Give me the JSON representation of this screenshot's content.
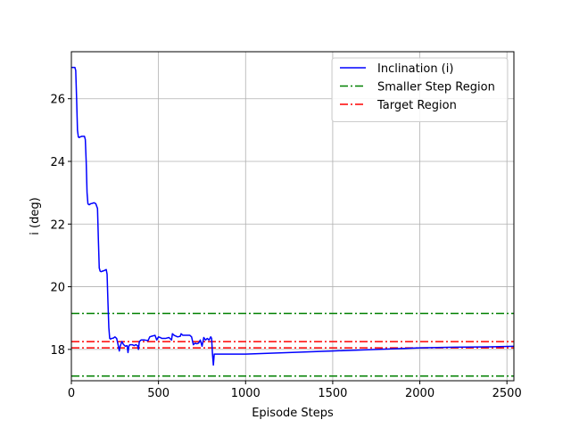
{
  "chart_data": {
    "type": "line",
    "xlabel": "Episode Steps",
    "ylabel": "i (deg)",
    "xlim": [
      0,
      2540
    ],
    "ylim": [
      17.0,
      27.5
    ],
    "xticks": [
      0,
      500,
      1000,
      1500,
      2000,
      2500
    ],
    "yticks": [
      18,
      20,
      22,
      24,
      26
    ],
    "grid": true,
    "legend_position": "top-right",
    "series": [
      {
        "name": "Inclination (i)",
        "color": "#0000ff",
        "style": "solid",
        "x": [
          0,
          5,
          10,
          15,
          20,
          25,
          30,
          35,
          40,
          45,
          50,
          60,
          70,
          75,
          80,
          85,
          90,
          95,
          100,
          105,
          110,
          120,
          130,
          140,
          150,
          155,
          160,
          165,
          170,
          180,
          190,
          200,
          205,
          210,
          215,
          220,
          225,
          230,
          240,
          250,
          260,
          270,
          275,
          280,
          290,
          300,
          310,
          320,
          325,
          330,
          335,
          340,
          350,
          360,
          370,
          380,
          385,
          390,
          400,
          420,
          440,
          450,
          460,
          480,
          490,
          500,
          510,
          520,
          540,
          560,
          575,
          580,
          590,
          610,
          625,
          630,
          640,
          660,
          680,
          690,
          700,
          710,
          720,
          730,
          740,
          750,
          760,
          770,
          780,
          790,
          800,
          805,
          810,
          815,
          820,
          1000,
          1500,
          2000,
          2200,
          2400,
          2540
        ],
        "y": [
          27.0,
          27.0,
          27.0,
          27.0,
          27.0,
          26.9,
          26.0,
          25.0,
          24.78,
          24.76,
          24.78,
          24.8,
          24.8,
          24.8,
          24.7,
          24.0,
          23.0,
          22.65,
          22.62,
          22.62,
          22.65,
          22.66,
          22.68,
          22.65,
          22.5,
          21.5,
          20.6,
          20.5,
          20.48,
          20.5,
          20.52,
          20.55,
          20.4,
          19.5,
          18.7,
          18.35,
          18.33,
          18.35,
          18.36,
          18.4,
          18.35,
          18.1,
          17.95,
          18.1,
          18.25,
          18.15,
          18.1,
          18.12,
          17.9,
          18.1,
          18.15,
          18.15,
          18.15,
          18.12,
          18.15,
          18.12,
          18.0,
          18.25,
          18.3,
          18.3,
          18.28,
          18.4,
          18.42,
          18.45,
          18.3,
          18.4,
          18.38,
          18.35,
          18.35,
          18.38,
          18.3,
          18.5,
          18.45,
          18.4,
          18.42,
          18.5,
          18.45,
          18.45,
          18.45,
          18.4,
          18.15,
          18.2,
          18.18,
          18.2,
          18.3,
          18.1,
          18.38,
          18.3,
          18.35,
          18.3,
          18.4,
          18.35,
          17.85,
          17.5,
          17.85,
          17.85,
          17.95,
          18.05,
          18.07,
          18.08,
          18.1
        ]
      },
      {
        "name": "Smaller Step Region",
        "color": "#008000",
        "style": "dashdot",
        "hlines": [
          19.15,
          17.15
        ]
      },
      {
        "name": "Target Region",
        "color": "#ff0000",
        "style": "dashdot",
        "hlines": [
          18.25,
          18.05
        ]
      }
    ]
  }
}
